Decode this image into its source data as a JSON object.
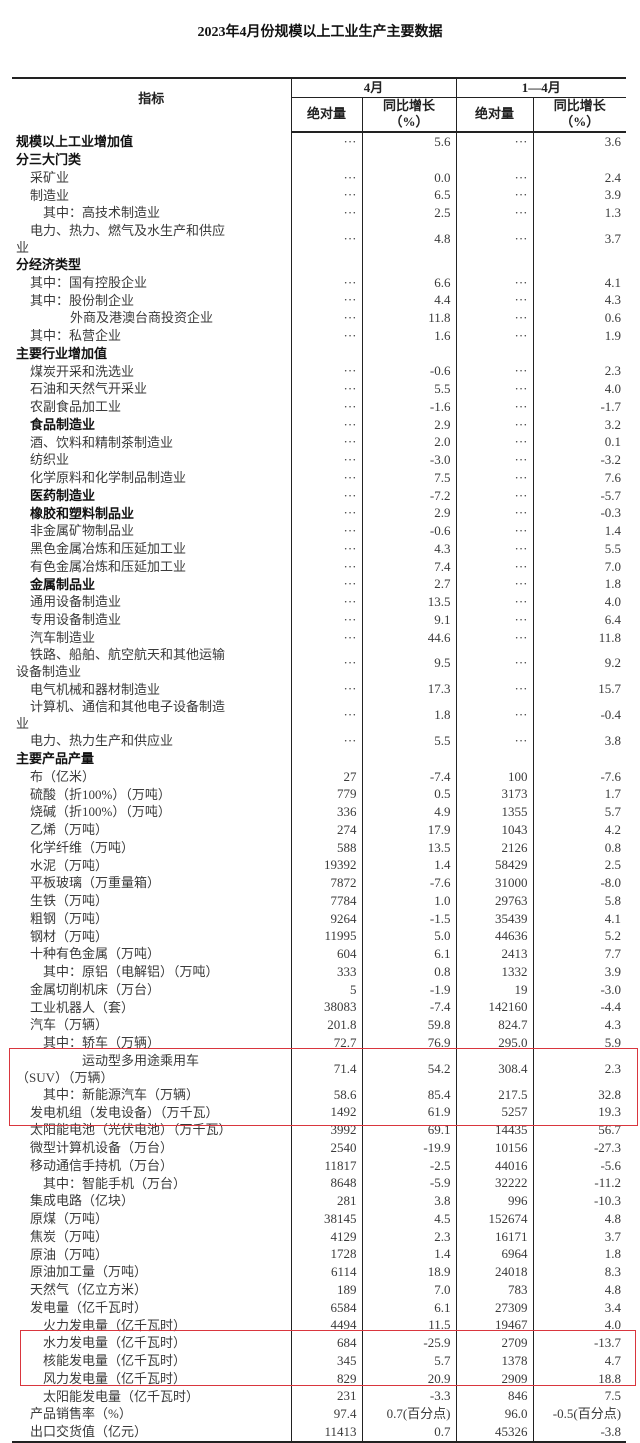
{
  "title": "2023年4月份规模以上工业生产主要数据",
  "header": {
    "indicator": "指标",
    "month": "4月",
    "ytd": "1—4月",
    "abs": "绝对量",
    "yoy": "同比增长",
    "pct": "（%）"
  },
  "highlight_color": "#d9363e",
  "rows": [
    {
      "label": "规模以上工业增加值",
      "level": 0,
      "bold": true,
      "m_abs": "···",
      "m_yoy": "5.6",
      "y_abs": "···",
      "y_yoy": "3.6"
    },
    {
      "label": "分三大门类",
      "level": 0,
      "bold": true,
      "m_abs": "",
      "m_yoy": "",
      "y_abs": "",
      "y_yoy": ""
    },
    {
      "label": "采矿业",
      "level": 1,
      "m_abs": "···",
      "m_yoy": "0.0",
      "y_abs": "···",
      "y_yoy": "2.4"
    },
    {
      "label": "制造业",
      "level": 1,
      "m_abs": "···",
      "m_yoy": "6.5",
      "y_abs": "···",
      "y_yoy": "3.9"
    },
    {
      "label": "其中：高技术制造业",
      "level": 2,
      "m_abs": "···",
      "m_yoy": "2.5",
      "y_abs": "···",
      "y_yoy": "1.3"
    },
    {
      "label": "电力、热力、燃气及水生产和供应业",
      "level": 1,
      "m_abs": "···",
      "m_yoy": "4.8",
      "y_abs": "···",
      "y_yoy": "3.7"
    },
    {
      "label": "分经济类型",
      "level": 0,
      "bold": true,
      "m_abs": "",
      "m_yoy": "",
      "y_abs": "",
      "y_yoy": ""
    },
    {
      "label": "其中：国有控股企业",
      "level": 1,
      "m_abs": "···",
      "m_yoy": "6.6",
      "y_abs": "···",
      "y_yoy": "4.1"
    },
    {
      "label": "其中：股份制企业",
      "level": 1,
      "m_abs": "···",
      "m_yoy": "4.4",
      "y_abs": "···",
      "y_yoy": "4.3"
    },
    {
      "label": "外商及港澳台商投资企业",
      "level": 3,
      "m_abs": "···",
      "m_yoy": "11.8",
      "y_abs": "···",
      "y_yoy": "0.6"
    },
    {
      "label": "其中：私营企业",
      "level": 1,
      "m_abs": "···",
      "m_yoy": "1.6",
      "y_abs": "···",
      "y_yoy": "1.9"
    },
    {
      "label": "主要行业增加值",
      "level": 0,
      "bold": true,
      "m_abs": "",
      "m_yoy": "",
      "y_abs": "",
      "y_yoy": ""
    },
    {
      "label": "煤炭开采和洗选业",
      "level": 1,
      "m_abs": "···",
      "m_yoy": "-0.6",
      "y_abs": "···",
      "y_yoy": "2.3"
    },
    {
      "label": "石油和天然气开采业",
      "level": 1,
      "m_abs": "···",
      "m_yoy": "5.5",
      "y_abs": "···",
      "y_yoy": "4.0"
    },
    {
      "label": "农副食品加工业",
      "level": 1,
      "m_abs": "···",
      "m_yoy": "-1.6",
      "y_abs": "···",
      "y_yoy": "-1.7"
    },
    {
      "label": "食品制造业",
      "level": 1,
      "bold": true,
      "m_abs": "···",
      "m_yoy": "2.9",
      "y_abs": "···",
      "y_yoy": "3.2"
    },
    {
      "label": "酒、饮料和精制茶制造业",
      "level": 1,
      "m_abs": "···",
      "m_yoy": "2.0",
      "y_abs": "···",
      "y_yoy": "0.1"
    },
    {
      "label": "纺织业",
      "level": 1,
      "m_abs": "···",
      "m_yoy": "-3.0",
      "y_abs": "···",
      "y_yoy": "-3.2"
    },
    {
      "label": "化学原料和化学制品制造业",
      "level": 1,
      "m_abs": "···",
      "m_yoy": "7.5",
      "y_abs": "···",
      "y_yoy": "7.6"
    },
    {
      "label": "医药制造业",
      "level": 1,
      "bold": true,
      "m_abs": "···",
      "m_yoy": "-7.2",
      "y_abs": "···",
      "y_yoy": "-5.7"
    },
    {
      "label": "橡胶和塑料制品业",
      "level": 1,
      "bold": true,
      "m_abs": "···",
      "m_yoy": "2.9",
      "y_abs": "···",
      "y_yoy": "-0.3"
    },
    {
      "label": "非金属矿物制品业",
      "level": 1,
      "m_abs": "···",
      "m_yoy": "-0.6",
      "y_abs": "···",
      "y_yoy": "1.4"
    },
    {
      "label": "黑色金属冶炼和压延加工业",
      "level": 1,
      "m_abs": "···",
      "m_yoy": "4.3",
      "y_abs": "···",
      "y_yoy": "5.5"
    },
    {
      "label": "有色金属冶炼和压延加工业",
      "level": 1,
      "m_abs": "···",
      "m_yoy": "7.4",
      "y_abs": "···",
      "y_yoy": "7.0"
    },
    {
      "label": "金属制品业",
      "level": 1,
      "bold": true,
      "m_abs": "···",
      "m_yoy": "2.7",
      "y_abs": "···",
      "y_yoy": "1.8"
    },
    {
      "label": "通用设备制造业",
      "level": 1,
      "m_abs": "···",
      "m_yoy": "13.5",
      "y_abs": "···",
      "y_yoy": "4.0"
    },
    {
      "label": "专用设备制造业",
      "level": 1,
      "m_abs": "···",
      "m_yoy": "9.1",
      "y_abs": "···",
      "y_yoy": "6.4"
    },
    {
      "label": "汽车制造业",
      "level": 1,
      "m_abs": "···",
      "m_yoy": "44.6",
      "y_abs": "···",
      "y_yoy": "11.8"
    },
    {
      "label": "铁路、船舶、航空航天和其他运输设备制造业",
      "level": 1,
      "m_abs": "···",
      "m_yoy": "9.5",
      "y_abs": "···",
      "y_yoy": "9.2"
    },
    {
      "label": "电气机械和器材制造业",
      "level": 1,
      "m_abs": "···",
      "m_yoy": "17.3",
      "y_abs": "···",
      "y_yoy": "15.7"
    },
    {
      "label": "计算机、通信和其他电子设备制造业",
      "level": 1,
      "m_abs": "···",
      "m_yoy": "1.8",
      "y_abs": "···",
      "y_yoy": "-0.4"
    },
    {
      "label": "电力、热力生产和供应业",
      "level": 1,
      "m_abs": "···",
      "m_yoy": "5.5",
      "y_abs": "···",
      "y_yoy": "3.8"
    },
    {
      "label": "主要产品产量",
      "level": 0,
      "bold": true,
      "m_abs": "",
      "m_yoy": "",
      "y_abs": "",
      "y_yoy": ""
    },
    {
      "label": "布（亿米）",
      "level": 1,
      "m_abs": "27",
      "m_yoy": "-7.4",
      "y_abs": "100",
      "y_yoy": "-7.6"
    },
    {
      "label": "硫酸（折100%）（万吨）",
      "level": 1,
      "m_abs": "779",
      "m_yoy": "0.5",
      "y_abs": "3173",
      "y_yoy": "1.7"
    },
    {
      "label": "烧碱（折100%）（万吨）",
      "level": 1,
      "m_abs": "336",
      "m_yoy": "4.9",
      "y_abs": "1355",
      "y_yoy": "5.7"
    },
    {
      "label": "乙烯（万吨）",
      "level": 1,
      "m_abs": "274",
      "m_yoy": "17.9",
      "y_abs": "1043",
      "y_yoy": "4.2"
    },
    {
      "label": "化学纤维（万吨）",
      "level": 1,
      "m_abs": "588",
      "m_yoy": "13.5",
      "y_abs": "2126",
      "y_yoy": "0.8"
    },
    {
      "label": "水泥（万吨）",
      "level": 1,
      "m_abs": "19392",
      "m_yoy": "1.4",
      "y_abs": "58429",
      "y_yoy": "2.5"
    },
    {
      "label": "平板玻璃（万重量箱）",
      "level": 1,
      "m_abs": "7872",
      "m_yoy": "-7.6",
      "y_abs": "31000",
      "y_yoy": "-8.0"
    },
    {
      "label": "生铁（万吨）",
      "level": 1,
      "m_abs": "7784",
      "m_yoy": "1.0",
      "y_abs": "29763",
      "y_yoy": "5.8"
    },
    {
      "label": "粗钢（万吨）",
      "level": 1,
      "m_abs": "9264",
      "m_yoy": "-1.5",
      "y_abs": "35439",
      "y_yoy": "4.1"
    },
    {
      "label": "钢材（万吨）",
      "level": 1,
      "m_abs": "11995",
      "m_yoy": "5.0",
      "y_abs": "44636",
      "y_yoy": "5.2"
    },
    {
      "label": "十种有色金属（万吨）",
      "level": 1,
      "m_abs": "604",
      "m_yoy": "6.1",
      "y_abs": "2413",
      "y_yoy": "7.7"
    },
    {
      "label": "其中：原铝（电解铝）（万吨）",
      "level": 2,
      "m_abs": "333",
      "m_yoy": "0.8",
      "y_abs": "1332",
      "y_yoy": "3.9"
    },
    {
      "label": "金属切削机床（万台）",
      "level": 1,
      "m_abs": "5",
      "m_yoy": "-1.9",
      "y_abs": "19",
      "y_yoy": "-3.0"
    },
    {
      "label": "工业机器人（套）",
      "level": 1,
      "m_abs": "38083",
      "m_yoy": "-7.4",
      "y_abs": "142160",
      "y_yoy": "-4.4"
    },
    {
      "label": "汽车（万辆）",
      "level": 1,
      "m_abs": "201.8",
      "m_yoy": "59.8",
      "y_abs": "824.7",
      "y_yoy": "4.3"
    },
    {
      "label": "其中：轿车（万辆）",
      "level": 2,
      "m_abs": "72.7",
      "m_yoy": "76.9",
      "y_abs": "295.0",
      "y_yoy": "5.9"
    },
    {
      "label": "运动型多用途乘用车（SUV）（万辆）",
      "level": 4,
      "m_abs": "71.4",
      "m_yoy": "54.2",
      "y_abs": "308.4",
      "y_yoy": "2.3"
    },
    {
      "label": "其中：新能源汽车（万辆）",
      "level": 2,
      "m_abs": "58.6",
      "m_yoy": "85.4",
      "y_abs": "217.5",
      "y_yoy": "32.8"
    },
    {
      "label": "发电机组（发电设备）（万千瓦）",
      "level": 1,
      "m_abs": "1492",
      "m_yoy": "61.9",
      "y_abs": "5257",
      "y_yoy": "19.3"
    },
    {
      "label": "太阳能电池（光伏电池）（万千瓦）",
      "level": 1,
      "m_abs": "3992",
      "m_yoy": "69.1",
      "y_abs": "14435",
      "y_yoy": "56.7"
    },
    {
      "label": "微型计算机设备（万台）",
      "level": 1,
      "m_abs": "2540",
      "m_yoy": "-19.9",
      "y_abs": "10156",
      "y_yoy": "-27.3"
    },
    {
      "label": "移动通信手持机（万台）",
      "level": 1,
      "m_abs": "11817",
      "m_yoy": "-2.5",
      "y_abs": "44016",
      "y_yoy": "-5.6"
    },
    {
      "label": "其中：智能手机（万台）",
      "level": 2,
      "m_abs": "8648",
      "m_yoy": "-5.9",
      "y_abs": "32222",
      "y_yoy": "-11.2"
    },
    {
      "label": "集成电路（亿块）",
      "level": 1,
      "m_abs": "281",
      "m_yoy": "3.8",
      "y_abs": "996",
      "y_yoy": "-10.3"
    },
    {
      "label": "原煤（万吨）",
      "level": 1,
      "m_abs": "38145",
      "m_yoy": "4.5",
      "y_abs": "152674",
      "y_yoy": "4.8"
    },
    {
      "label": "焦炭（万吨）",
      "level": 1,
      "m_abs": "4129",
      "m_yoy": "2.3",
      "y_abs": "16171",
      "y_yoy": "3.7"
    },
    {
      "label": "原油（万吨）",
      "level": 1,
      "m_abs": "1728",
      "m_yoy": "1.4",
      "y_abs": "6964",
      "y_yoy": "1.8"
    },
    {
      "label": "原油加工量（万吨）",
      "level": 1,
      "m_abs": "6114",
      "m_yoy": "18.9",
      "y_abs": "24018",
      "y_yoy": "8.3"
    },
    {
      "label": "天然气（亿立方米）",
      "level": 1,
      "m_abs": "189",
      "m_yoy": "7.0",
      "y_abs": "783",
      "y_yoy": "4.8"
    },
    {
      "label": "发电量（亿千瓦时）",
      "level": 1,
      "m_abs": "6584",
      "m_yoy": "6.1",
      "y_abs": "27309",
      "y_yoy": "3.4"
    },
    {
      "label": "火力发电量（亿千瓦时）",
      "level": 2,
      "m_abs": "4494",
      "m_yoy": "11.5",
      "y_abs": "19467",
      "y_yoy": "4.0"
    },
    {
      "label": "水力发电量（亿千瓦时）",
      "level": 2,
      "m_abs": "684",
      "m_yoy": "-25.9",
      "y_abs": "2709",
      "y_yoy": "-13.7"
    },
    {
      "label": "核能发电量（亿千瓦时）",
      "level": 2,
      "m_abs": "345",
      "m_yoy": "5.7",
      "y_abs": "1378",
      "y_yoy": "4.7"
    },
    {
      "label": "风力发电量（亿千瓦时）",
      "level": 2,
      "m_abs": "829",
      "m_yoy": "20.9",
      "y_abs": "2909",
      "y_yoy": "18.8"
    },
    {
      "label": "太阳能发电量（亿千瓦时）",
      "level": 2,
      "m_abs": "231",
      "m_yoy": "-3.3",
      "y_abs": "846",
      "y_yoy": "7.5"
    },
    {
      "label": "产品销售率（%）",
      "level": 1,
      "m_abs": "97.4",
      "m_yoy": "0.7(百分点)",
      "y_abs": "96.0",
      "y_yoy": "-0.5(百分点)"
    },
    {
      "label": "出口交货值（亿元）",
      "level": 1,
      "m_abs": "11413",
      "m_yoy": "0.7",
      "y_abs": "45326",
      "y_yoy": "-3.8"
    }
  ]
}
